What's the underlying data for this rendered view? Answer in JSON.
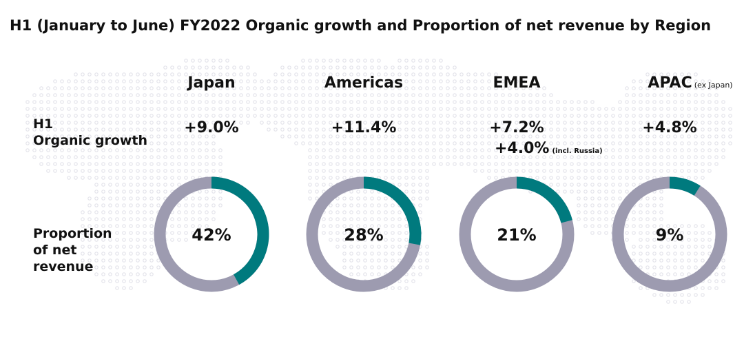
{
  "title": "H1 (January to June) FY2022 Organic growth and Proportion of net revenue by Region",
  "row_labels": {
    "growth": [
      "H1",
      "Organic growth"
    ],
    "proportion": [
      "Proportion",
      "of net",
      "revenue"
    ]
  },
  "colors": {
    "accent": "#007a7e",
    "ring": "#9d9bb0",
    "map_dots": "#e3e3ea"
  },
  "chart_data": {
    "type": "pie",
    "title": "H1 (January to June) FY2022 Organic growth and Proportion of net revenue by Region",
    "categories": [
      "Japan",
      "Americas",
      "EMEA",
      "APAC"
    ],
    "regions": [
      {
        "name": "Japan",
        "sub": "",
        "growth": [
          "+9.0%"
        ],
        "growth_note": "",
        "share": 42,
        "share_label": "42%"
      },
      {
        "name": "Americas",
        "sub": "",
        "growth": [
          "+11.4%"
        ],
        "growth_note": "",
        "share": 28,
        "share_label": "28%"
      },
      {
        "name": "EMEA",
        "sub": "",
        "growth": [
          "+7.2%",
          "+4.0%"
        ],
        "growth_note": "(incl. Russia)",
        "share": 21,
        "share_label": "21%"
      },
      {
        "name": "APAC",
        "sub": "(ex Japan)",
        "growth": [
          "+4.8%"
        ],
        "growth_note": "",
        "share": 9,
        "share_label": "9%"
      }
    ]
  }
}
